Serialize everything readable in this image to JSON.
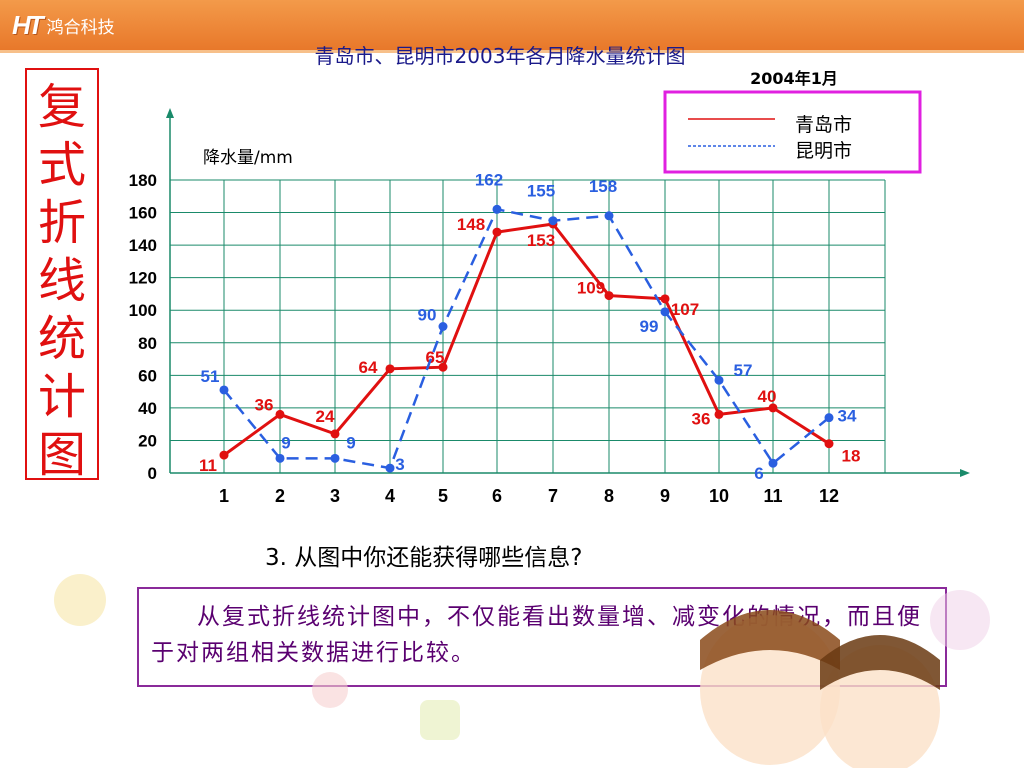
{
  "header": {
    "logo_mark": "HT",
    "logo_text": "鸿合科技"
  },
  "side_title": "复式折线统计图",
  "question": "3. 从图中你还能获得哪些信息?",
  "answer": "从复式折线统计图中，不仅能看出数量增、减变化的情况，而且便于对两组相关数据进行比较。",
  "colors": {
    "header": "#f08a3a",
    "qingdao": "#e01010",
    "kunming": "#2a5fe0",
    "grid": "#1a8a6a",
    "legend_border": "#e020e0"
  },
  "chart_data": {
    "type": "line",
    "title": "青岛市、昆明市2003年各月降水量统计图",
    "subtitle": "2004年1月",
    "ylabel": "降水量/mm",
    "xlabel": "",
    "categories": [
      "1",
      "2",
      "3",
      "4",
      "5",
      "6",
      "7",
      "8",
      "9",
      "10",
      "11",
      "12"
    ],
    "y_tick_labels": [
      "0",
      "20",
      "40",
      "60",
      "80",
      "100",
      "120",
      "140",
      "160",
      "180"
    ],
    "ylim": [
      0,
      180
    ],
    "grid": true,
    "legend_position": "top-right",
    "series": [
      {
        "name": "青岛市",
        "style": "solid",
        "color": "#e01010",
        "values": [
          11,
          36,
          24,
          64,
          65,
          148,
          153,
          109,
          107,
          36,
          40,
          18
        ],
        "labels": [
          "11",
          "36",
          "24",
          "64",
          "65",
          "148",
          "153",
          "109",
          "107",
          "36",
          "40",
          "18"
        ]
      },
      {
        "name": "昆明市",
        "style": "dashed",
        "color": "#2a5fe0",
        "values": [
          51,
          9,
          9,
          3,
          90,
          162,
          155,
          158,
          99,
          57,
          6,
          34
        ],
        "labels": [
          "51",
          "9",
          "9",
          "3",
          "90",
          "162",
          "155",
          "158",
          "99",
          "57",
          "6",
          "34"
        ]
      }
    ]
  }
}
